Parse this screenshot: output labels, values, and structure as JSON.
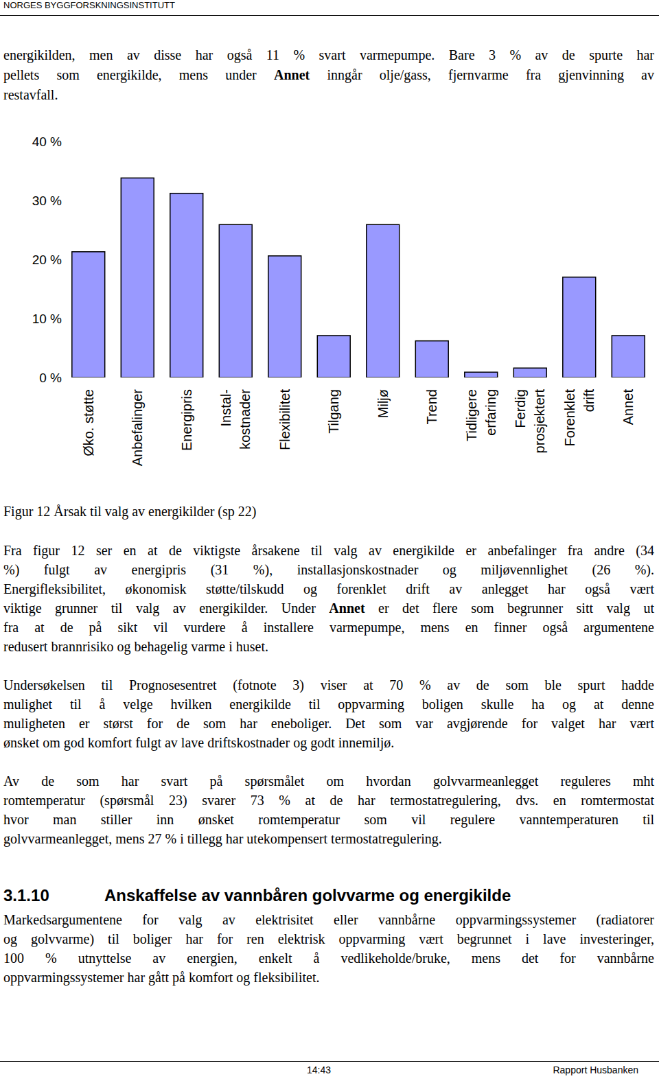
{
  "header": {
    "text": "NORGES BYGGFORSKNINGSINSTITUTT"
  },
  "intro": {
    "lines": [
      [
        "energikilden, men av disse har også 11 % svart varmepumpe. Bare 3 % av de spurte har"
      ],
      [
        "pellets som energikilde, mens under ",
        {
          "bold": "Annet"
        },
        " inngår olje/gass, fjernvarme fra gjenvinning av"
      ],
      [
        "restavfall."
      ]
    ]
  },
  "chart_data": {
    "type": "bar",
    "categories": [
      "Øko. støtte",
      "Anbefalinger",
      "Energipris",
      "Instal-\nkostnader",
      "Flexibilitet",
      "Tilgang",
      "Miljø",
      "Trend",
      "Tidligere\nerfaring",
      "Ferdig\nprosjektert",
      "Forenklet\ndrift",
      "Annet"
    ],
    "values": [
      21.3,
      33.8,
      31.2,
      25.9,
      20.6,
      7.1,
      25.9,
      6.2,
      0.9,
      1.6,
      17,
      7.1
    ],
    "color": "#9999ff",
    "ylim": [
      0,
      40
    ],
    "yticks": [
      {
        "value": 0,
        "label": "0 %"
      },
      {
        "value": 10,
        "label": "10 %"
      },
      {
        "value": 20,
        "label": "20 %"
      },
      {
        "value": 30,
        "label": "30 %"
      },
      {
        "value": 40,
        "label": "40 %"
      }
    ],
    "grid": false
  },
  "caption": "Figur 12 Årsak til valg av energikilder (sp 22)",
  "paragraphs": [
    {
      "lines": [
        [
          "Fra figur 12 ser en at de viktigste årsakene til valg av energikilde er anbefalinger fra andre (34"
        ],
        [
          "%) fulgt av energipris (31 %), installasjonskostnader og miljøvennlighet (26 %)."
        ],
        [
          "Energifleksibilitet, økonomisk støtte/tilskudd og forenklet drift av anlegget har også vært"
        ],
        [
          "viktige grunner til valg av energikilder. Under ",
          {
            "bold": "Annet"
          },
          " er det flere som begrunner sitt valg ut"
        ],
        [
          "fra at de på sikt vil vurdere å installere varmepumpe, mens en finner også argumentene"
        ],
        [
          "redusert brannrisiko og behagelig varme i huset."
        ]
      ]
    },
    {
      "lines": [
        [
          "Undersøkelsen til Prognosesentret (fotnote 3) viser at 70 % av de som ble spurt hadde"
        ],
        [
          "mulighet til å velge hvilken energikilde til oppvarming boligen skulle ha og at denne"
        ],
        [
          "muligheten er størst for de som har eneboliger. Det som var avgjørende for valget har vært"
        ],
        [
          "ønsket om god komfort fulgt av lave driftskostnader og godt innemiljø."
        ]
      ]
    },
    {
      "lines": [
        [
          "Av de som har svart på spørsmålet om hvordan golvvarmeanlegget reguleres mht"
        ],
        [
          "romtemperatur (spørsmål 23) svarer 73 % at de har termostatregulering, dvs. en romtermostat"
        ],
        [
          "hvor man stiller inn ønsket romtemperatur som vil regulere vanntemperaturen til"
        ],
        [
          "golvvarmeanlegget, mens 27 % i tillegg har utekompensert termostatregulering."
        ]
      ]
    }
  ],
  "section": {
    "number": "3.1.10",
    "title": "Anskaffelse av vannbåren golvvarme og energikilde",
    "lines": [
      [
        "Markedsargumentene for valg av elektrisitet eller vannbårne oppvarmingssystemer (radiatorer"
      ],
      [
        "og golvvarme) til boliger har for ren elektrisk oppvarming vært begrunnet i lave investeringer,"
      ],
      [
        "100 % utnyttelse av energien, enkelt å vedlikeholde/bruke, mens det for vannbårne"
      ],
      [
        "oppvarmingssystemer har gått på komfort og fleksibilitet."
      ]
    ]
  },
  "footer": {
    "time": "14:43",
    "report": "Rapport Husbanken"
  }
}
